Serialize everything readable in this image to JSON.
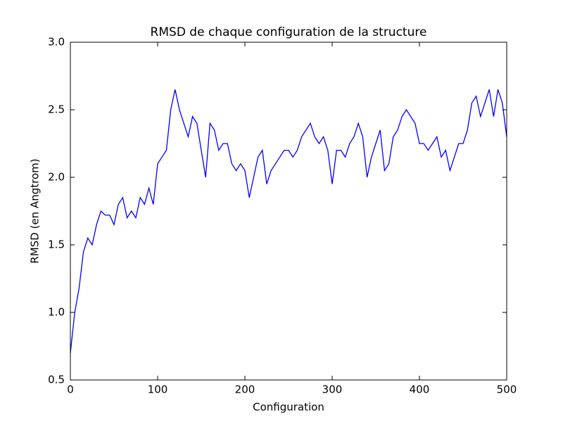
{
  "chart_data": {
    "type": "line",
    "title": "RMSD de chaque configuration de la structure",
    "xlabel": "Configuration",
    "ylabel": "RMSD (en Angtrom)",
    "x": [
      0,
      5,
      10,
      15,
      20,
      25,
      30,
      35,
      40,
      45,
      50,
      55,
      60,
      65,
      70,
      75,
      80,
      85,
      90,
      95,
      100,
      105,
      110,
      115,
      120,
      125,
      130,
      135,
      140,
      145,
      150,
      155,
      160,
      165,
      170,
      175,
      180,
      185,
      190,
      195,
      200,
      205,
      210,
      215,
      220,
      225,
      230,
      235,
      240,
      245,
      250,
      255,
      260,
      265,
      270,
      275,
      280,
      285,
      290,
      295,
      300,
      305,
      310,
      315,
      320,
      325,
      330,
      335,
      340,
      345,
      350,
      355,
      360,
      365,
      370,
      375,
      380,
      385,
      390,
      395,
      400,
      405,
      410,
      415,
      420,
      425,
      430,
      435,
      440,
      445,
      450,
      455,
      460,
      465,
      470,
      475,
      480,
      485,
      490,
      495,
      500
    ],
    "series": [
      {
        "color": "#0000ff",
        "values": [
          0.7,
          1.0,
          1.18,
          1.45,
          1.55,
          1.5,
          1.65,
          1.75,
          1.72,
          1.72,
          1.65,
          1.8,
          1.85,
          1.7,
          1.75,
          1.7,
          1.85,
          1.8,
          1.92,
          1.8,
          2.1,
          2.15,
          2.2,
          2.5,
          2.65,
          2.5,
          2.4,
          2.3,
          2.45,
          2.4,
          2.2,
          2.0,
          2.4,
          2.35,
          2.2,
          2.25,
          2.25,
          2.1,
          2.05,
          2.1,
          2.05,
          1.85,
          2.0,
          2.15,
          2.2,
          1.95,
          2.05,
          2.1,
          2.15,
          2.2,
          2.2,
          2.15,
          2.2,
          2.3,
          2.35,
          2.4,
          2.3,
          2.25,
          2.3,
          2.2,
          1.95,
          2.2,
          2.2,
          2.15,
          2.25,
          2.3,
          2.4,
          2.3,
          2.0,
          2.15,
          2.25,
          2.35,
          2.05,
          2.1,
          2.3,
          2.35,
          2.45,
          2.5,
          2.45,
          2.4,
          2.25,
          2.25,
          2.2,
          2.25,
          2.3,
          2.15,
          2.2,
          2.05,
          2.15,
          2.25,
          2.25,
          2.35,
          2.55,
          2.6,
          2.45,
          2.55,
          2.65,
          2.45,
          2.65,
          2.55,
          2.3
        ]
      }
    ],
    "xlim": [
      0,
      500
    ],
    "xticks": [
      0,
      100,
      200,
      300,
      400,
      500
    ],
    "ylim": [
      0.5,
      3.0
    ],
    "yticks": [
      0.5,
      {
        "value": 1,
        "label": "1.0"
      },
      1.5,
      {
        "value": 2,
        "label": "2.0"
      },
      2.5,
      {
        "value": 3,
        "label": "3.0"
      }
    ],
    "grid": false
  }
}
